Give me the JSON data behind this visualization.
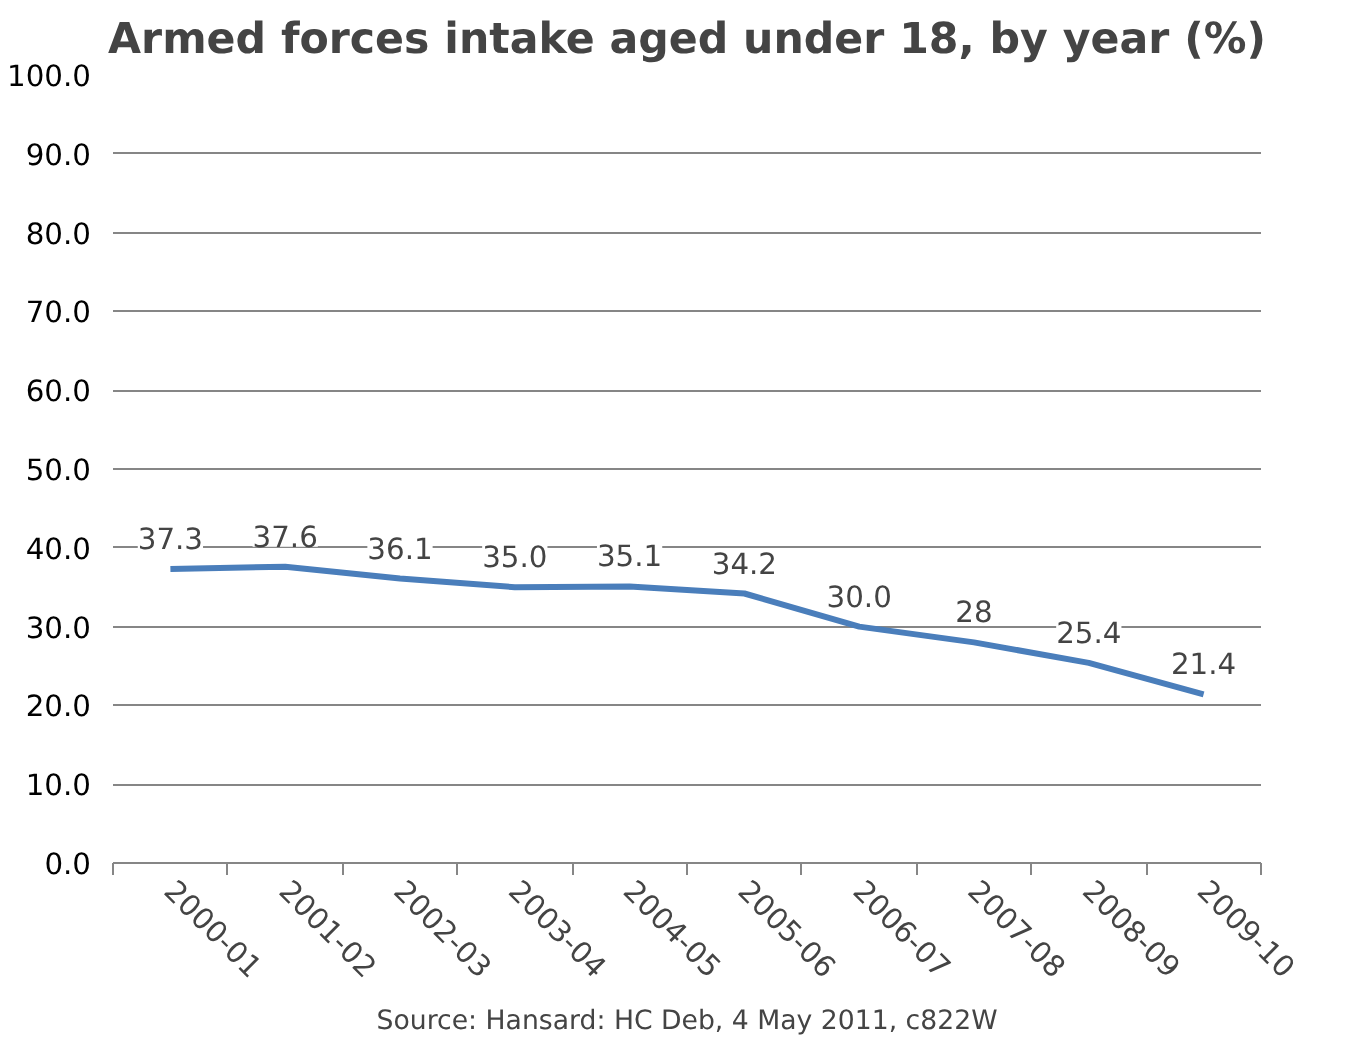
{
  "chart_data": {
    "type": "line",
    "title": "Armed forces intake aged under 18, by year (%)",
    "categories": [
      "2000-01",
      "2001-02",
      "2002-03",
      "2003-04",
      "2004-05",
      "2005-06",
      "2006-07",
      "2007-08",
      "2008-09",
      "2009-10"
    ],
    "series": [
      {
        "color": "#4a7ebb",
        "values": [
          37.3,
          37.6,
          36.1,
          35.0,
          35.1,
          34.2,
          30.0,
          28,
          25.4,
          21.4
        ],
        "value_labels": [
          "37.3",
          "37.6",
          "36.1",
          "35.0",
          "35.1",
          "34.2",
          "30.0",
          "28",
          "25.4",
          "21.4"
        ]
      }
    ],
    "ylim": [
      0,
      100
    ],
    "yticks": [
      {
        "value": 0,
        "label": "0.0"
      },
      {
        "value": 10,
        "label": "10.0"
      },
      {
        "value": 20,
        "label": "20.0"
      },
      {
        "value": 30,
        "label": "30.0"
      },
      {
        "value": 40,
        "label": "40.0"
      },
      {
        "value": 50,
        "label": "50.0"
      },
      {
        "value": 60,
        "label": "60.0"
      },
      {
        "value": 70,
        "label": "70.0"
      },
      {
        "value": 80,
        "label": "80.0"
      },
      {
        "value": 90,
        "label": "90.0"
      },
      {
        "value": 100,
        "label": "100.0"
      }
    ],
    "grid": "y",
    "marker": "none",
    "line_style": "solid",
    "annotations": [
      "Source: Hansard: HC Deb, 4 May 2011, c822W"
    ]
  }
}
